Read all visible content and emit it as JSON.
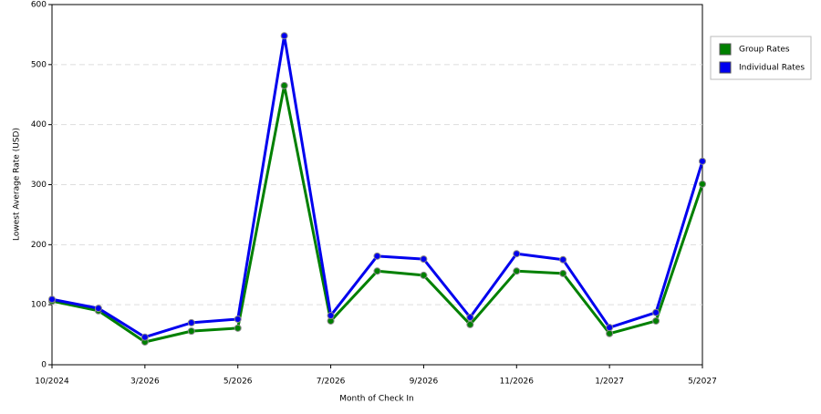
{
  "chart_data": {
    "type": "line",
    "x_label": "Month of Check In",
    "y_label": "Lowest Average Rate (USD)",
    "categories": [
      "10/2024",
      null,
      "3/2026",
      null,
      "5/2026",
      null,
      "7/2026",
      null,
      "9/2026",
      null,
      "11/2026",
      null,
      "1/2027",
      null,
      "5/2027"
    ],
    "series": [
      {
        "name": "Group Rates",
        "color": "#008000",
        "values": [
          106,
          90,
          38,
          56,
          61,
          465,
          73,
          156,
          149,
          67,
          156,
          152,
          52,
          73,
          301
        ]
      },
      {
        "name": "Individual Rates",
        "color": "#0000ee",
        "values": [
          109,
          94,
          46,
          70,
          76,
          548,
          82,
          181,
          176,
          79,
          185,
          175,
          62,
          87,
          339
        ]
      }
    ],
    "ylim": [
      0,
      600
    ],
    "yticks": [
      0,
      100,
      200,
      300,
      400,
      500,
      600
    ],
    "grid": true,
    "legend": "right"
  }
}
